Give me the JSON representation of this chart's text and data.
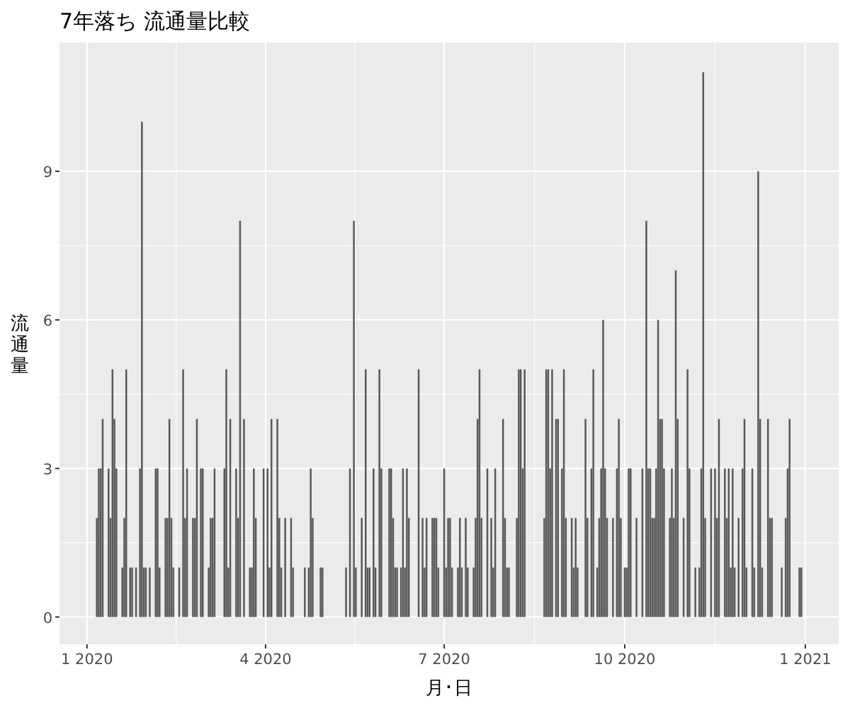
{
  "chart_data": {
    "type": "bar",
    "title": "7年落ち 流通量比較",
    "xlabel": "月･日",
    "ylabel": "流通量",
    "color": "#595959",
    "grid": true,
    "x": [
      "2020-01-06",
      "2020-01-07",
      "2020-01-08",
      "2020-01-09",
      "2020-01-12",
      "2020-01-13",
      "2020-01-14",
      "2020-01-15",
      "2020-01-16",
      "2020-01-19",
      "2020-01-20",
      "2020-01-21",
      "2020-01-23",
      "2020-01-24",
      "2020-01-26",
      "2020-01-28",
      "2020-01-29",
      "2020-01-30",
      "2020-01-31",
      "2020-02-02",
      "2020-02-05",
      "2020-02-06",
      "2020-02-07",
      "2020-02-10",
      "2020-02-11",
      "2020-02-12",
      "2020-02-13",
      "2020-02-14",
      "2020-02-17",
      "2020-02-19",
      "2020-02-20",
      "2020-02-21",
      "2020-02-24",
      "2020-02-25",
      "2020-02-26",
      "2020-02-28",
      "2020-02-29",
      "2020-03-03",
      "2020-03-04",
      "2020-03-05",
      "2020-03-06",
      "2020-03-11",
      "2020-03-12",
      "2020-03-13",
      "2020-03-14",
      "2020-03-17",
      "2020-03-18",
      "2020-03-19",
      "2020-03-21",
      "2020-03-24",
      "2020-03-25",
      "2020-03-26",
      "2020-03-27",
      "2020-03-31",
      "2020-04-02",
      "2020-04-03",
      "2020-04-04",
      "2020-04-07",
      "2020-04-08",
      "2020-04-09",
      "2020-04-11",
      "2020-04-14",
      "2020-04-15",
      "2020-04-21",
      "2020-04-23",
      "2020-04-24",
      "2020-04-25",
      "2020-04-29",
      "2020-04-30",
      "2020-05-12",
      "2020-05-14",
      "2020-05-16",
      "2020-05-17",
      "2020-05-20",
      "2020-05-22",
      "2020-05-23",
      "2020-05-24",
      "2020-05-26",
      "2020-05-27",
      "2020-05-29",
      "2020-05-30",
      "2020-06-03",
      "2020-06-04",
      "2020-06-05",
      "2020-06-06",
      "2020-06-07",
      "2020-06-09",
      "2020-06-10",
      "2020-06-11",
      "2020-06-12",
      "2020-06-13",
      "2020-06-18",
      "2020-06-20",
      "2020-06-21",
      "2020-06-22",
      "2020-06-25",
      "2020-06-26",
      "2020-06-27",
      "2020-06-28",
      "2020-07-01",
      "2020-07-02",
      "2020-07-03",
      "2020-07-04",
      "2020-07-05",
      "2020-07-08",
      "2020-07-09",
      "2020-07-10",
      "2020-07-12",
      "2020-07-13",
      "2020-07-16",
      "2020-07-17",
      "2020-07-18",
      "2020-07-19",
      "2020-07-20",
      "2020-07-23",
      "2020-07-25",
      "2020-07-26",
      "2020-07-27",
      "2020-07-31",
      "2020-08-01",
      "2020-08-02",
      "2020-08-03",
      "2020-08-07",
      "2020-08-08",
      "2020-08-09",
      "2020-08-10",
      "2020-08-11",
      "2020-08-21",
      "2020-08-22",
      "2020-08-23",
      "2020-08-24",
      "2020-08-25",
      "2020-08-27",
      "2020-08-28",
      "2020-08-30",
      "2020-08-31",
      "2020-09-01",
      "2020-09-04",
      "2020-09-05",
      "2020-09-06",
      "2020-09-07",
      "2020-09-11",
      "2020-09-12",
      "2020-09-14",
      "2020-09-15",
      "2020-09-17",
      "2020-09-18",
      "2020-09-19",
      "2020-09-20",
      "2020-09-21",
      "2020-09-22",
      "2020-09-25",
      "2020-09-27",
      "2020-09-28",
      "2020-09-29",
      "2020-10-01",
      "2020-10-02",
      "2020-10-03",
      "2020-10-04",
      "2020-10-07",
      "2020-10-10",
      "2020-10-12",
      "2020-10-13",
      "2020-10-14",
      "2020-10-15",
      "2020-10-16",
      "2020-10-17",
      "2020-10-18",
      "2020-10-19",
      "2020-10-20",
      "2020-10-21",
      "2020-10-24",
      "2020-10-25",
      "2020-10-26",
      "2020-10-27",
      "2020-10-28",
      "2020-10-31",
      "2020-11-02",
      "2020-11-03",
      "2020-11-06",
      "2020-11-08",
      "2020-11-09",
      "2020-11-10",
      "2020-11-11",
      "2020-11-14",
      "2020-11-16",
      "2020-11-17",
      "2020-11-18",
      "2020-11-21",
      "2020-11-22",
      "2020-11-23",
      "2020-11-24",
      "2020-11-25",
      "2020-11-26",
      "2020-11-28",
      "2020-11-30",
      "2020-12-01",
      "2020-12-02",
      "2020-12-05",
      "2020-12-06",
      "2020-12-08",
      "2020-12-09",
      "2020-12-10",
      "2020-12-13",
      "2020-12-14",
      "2020-12-15",
      "2020-12-20",
      "2020-12-22",
      "2020-12-23",
      "2020-12-24",
      "2020-12-29",
      "2020-12-30"
    ],
    "values": [
      2,
      3,
      3,
      4,
      3,
      2,
      5,
      4,
      3,
      1,
      2,
      5,
      1,
      1,
      1,
      3,
      10,
      1,
      1,
      1,
      3,
      3,
      1,
      2,
      2,
      4,
      2,
      1,
      1,
      5,
      2,
      3,
      2,
      2,
      4,
      3,
      3,
      1,
      2,
      2,
      3,
      3,
      5,
      1,
      4,
      3,
      2,
      8,
      4,
      1,
      1,
      3,
      2,
      3,
      3,
      1,
      4,
      4,
      2,
      1,
      2,
      2,
      1,
      1,
      1,
      3,
      2,
      1,
      1,
      1,
      3,
      8,
      1,
      2,
      5,
      1,
      1,
      3,
      1,
      5,
      3,
      3,
      3,
      2,
      1,
      1,
      1,
      3,
      1,
      3,
      2,
      5,
      2,
      1,
      2,
      2,
      2,
      2,
      1,
      3,
      1,
      2,
      2,
      1,
      1,
      2,
      1,
      2,
      1,
      1,
      2,
      4,
      5,
      2,
      3,
      2,
      1,
      3,
      4,
      2,
      1,
      1,
      2,
      5,
      5,
      3,
      5,
      2,
      5,
      5,
      3,
      5,
      4,
      4,
      3,
      5,
      2,
      2,
      1,
      2,
      1,
      4,
      2,
      3,
      5,
      1,
      2,
      3,
      6,
      3,
      2,
      2,
      3,
      4,
      2,
      1,
      1,
      3,
      3,
      2,
      3,
      8,
      3,
      3,
      2,
      2,
      3,
      6,
      4,
      4,
      3,
      2,
      3,
      2,
      7,
      4,
      2,
      5,
      3,
      1,
      1,
      3,
      11,
      2,
      3,
      3,
      2,
      4,
      3,
      2,
      3,
      1,
      3,
      1,
      2,
      3,
      4,
      1,
      3,
      1,
      9,
      4,
      1,
      4,
      2,
      2,
      1,
      2,
      3,
      4,
      1,
      1
    ],
    "xlim": [
      "2019-12-18",
      "2021-01-18"
    ],
    "xticks": [
      {
        "value": "2020-01-01",
        "label": "1 2020"
      },
      {
        "value": "2020-04-01",
        "label": "4 2020"
      },
      {
        "value": "2020-07-01",
        "label": "7 2020"
      },
      {
        "value": "2020-10-01",
        "label": "10 2020"
      },
      {
        "value": "2021-01-01",
        "label": "1 2021"
      }
    ],
    "ylim": [
      -0.55,
      11.6
    ],
    "yticks": [
      0,
      3,
      6,
      9
    ]
  }
}
